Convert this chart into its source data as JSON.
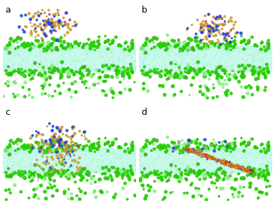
{
  "panels": [
    "a",
    "b",
    "c",
    "d"
  ],
  "background": "#ffffff",
  "bilayer_color": "#aaf0d1",
  "bilayer_inner_color": "#c8faeb",
  "green_head_color": "#22cc00",
  "light_green_color": "#88ee88",
  "brown_color": "#cc9933",
  "blue_color": "#2244cc",
  "purple_color": "#993399",
  "red_color": "#cc2200",
  "orange_color": "#dd6600",
  "gray_color": "#aaaaaa",
  "seed": 42
}
